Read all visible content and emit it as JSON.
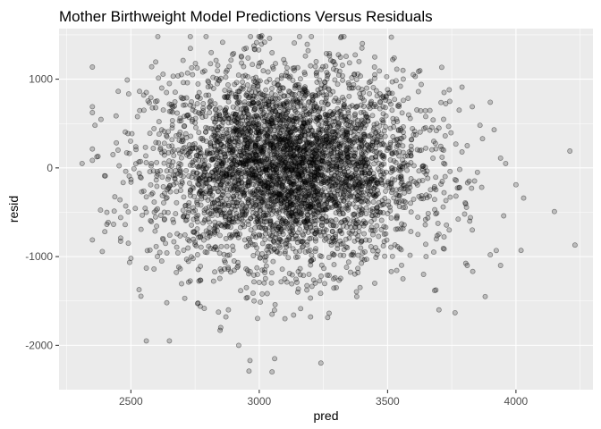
{
  "chart_data": {
    "type": "scatter",
    "title": "Mother Birthweight Model Predictions Versus Residuals",
    "xlabel": "pred",
    "ylabel": "resid",
    "xlim": [
      2220,
      4300
    ],
    "ylim": [
      -2500,
      1570
    ],
    "x_ticks": [
      2500,
      3000,
      3500,
      4000
    ],
    "y_ticks": [
      -2000,
      -1000,
      0,
      1000
    ],
    "x_tick_labels": [
      "2500",
      "3000",
      "3500",
      "4000"
    ],
    "y_tick_labels": [
      "-2000",
      "-1000",
      "0",
      "1000"
    ],
    "grid": true,
    "panel_background": "#ebebeb",
    "point_color": "#000000",
    "point_alpha": 0.2,
    "n_points": 4342,
    "x_center": 3110,
    "x_spread": 255,
    "y_spread": 540,
    "points": [
      [
        2310,
        50
      ],
      [
        2400,
        -90
      ],
      [
        2430,
        150
      ],
      [
        2450,
        200
      ],
      [
        2460,
        -560
      ],
      [
        2460,
        -790
      ],
      [
        2480,
        -430
      ],
      [
        2490,
        -850
      ],
      [
        2500,
        -1020
      ],
      [
        2560,
        -1950
      ],
      [
        2650,
        -1950
      ],
      [
        2550,
        820
      ],
      [
        2560,
        850
      ],
      [
        2620,
        900
      ],
      [
        2650,
        950
      ],
      [
        2740,
        1050
      ],
      [
        2780,
        1080
      ],
      [
        2870,
        1080
      ],
      [
        2900,
        1290
      ],
      [
        2930,
        1260
      ],
      [
        3010,
        1490
      ],
      [
        3040,
        1460
      ],
      [
        3100,
        1180
      ],
      [
        3200,
        1150
      ],
      [
        3300,
        1100
      ],
      [
        3400,
        1350
      ],
      [
        3450,
        1250
      ],
      [
        3520,
        1220
      ],
      [
        3560,
        1100
      ],
      [
        3600,
        1050
      ],
      [
        3720,
        850
      ],
      [
        3740,
        880
      ],
      [
        3790,
        910
      ],
      [
        3830,
        690
      ],
      [
        3900,
        740
      ],
      [
        3940,
        110
      ],
      [
        3960,
        50
      ],
      [
        4000,
        -190
      ],
      [
        4030,
        -340
      ],
      [
        4210,
        190
      ],
      [
        4230,
        -870
      ],
      [
        4020,
        -930
      ],
      [
        3940,
        -1100
      ],
      [
        3900,
        -980
      ],
      [
        3880,
        -1450
      ],
      [
        3810,
        -1100
      ],
      [
        3700,
        -1600
      ],
      [
        3680,
        -950
      ],
      [
        3650,
        -1000
      ],
      [
        3780,
        -220
      ],
      [
        3800,
        -520
      ],
      [
        3820,
        -600
      ],
      [
        3830,
        -700
      ],
      [
        3810,
        250
      ],
      [
        3790,
        180
      ],
      [
        3850,
        -50
      ],
      [
        3860,
        480
      ],
      [
        3700,
        450
      ],
      [
        3240,
        -2200
      ],
      [
        3060,
        -2150
      ],
      [
        2960,
        -2290
      ],
      [
        3050,
        -2300
      ],
      [
        2920,
        -2000
      ],
      [
        2880,
        -1600
      ],
      [
        2870,
        -1680
      ],
      [
        2850,
        -1800
      ],
      [
        2980,
        -1500
      ],
      [
        3050,
        -1650
      ],
      [
        3100,
        -1700
      ],
      [
        3200,
        -1680
      ],
      [
        2760,
        -1530
      ],
      [
        2770,
        -1560
      ],
      [
        2710,
        -1470
      ],
      [
        2640,
        -1520
      ],
      [
        2590,
        -1140
      ],
      [
        2620,
        -1050
      ],
      [
        2560,
        -1130
      ],
      [
        2560,
        -500
      ],
      [
        2580,
        -300
      ],
      [
        2610,
        380
      ],
      [
        2620,
        430
      ],
      [
        2650,
        720
      ],
      [
        2700,
        780
      ],
      [
        2720,
        960
      ],
      [
        2800,
        980
      ],
      [
        2820,
        1020
      ],
      [
        3000,
        1180
      ],
      [
        3150,
        1130
      ],
      [
        3370,
        1050
      ],
      [
        3450,
        1010
      ],
      [
        3550,
        920
      ],
      [
        3620,
        860
      ],
      [
        3680,
        300
      ],
      [
        3690,
        420
      ],
      [
        3720,
        -280
      ],
      [
        3740,
        -700
      ],
      [
        3690,
        -800
      ],
      [
        3640,
        -1200
      ],
      [
        3560,
        -1250
      ],
      [
        3450,
        -1300
      ],
      [
        3380,
        -1450
      ],
      [
        3300,
        -1350
      ],
      [
        3150,
        -1400
      ],
      [
        2950,
        -1350
      ]
    ]
  }
}
